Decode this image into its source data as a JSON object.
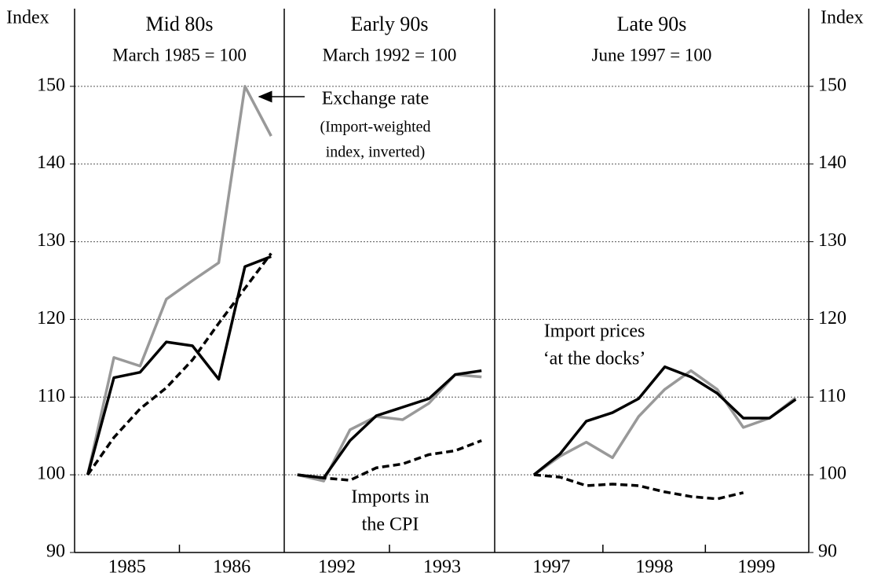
{
  "chart_data": {
    "type": "line",
    "y_label": "Index",
    "ylim": [
      90,
      160
    ],
    "yticks": [
      90,
      100,
      110,
      120,
      130,
      140,
      150
    ],
    "grid": true,
    "panels": [
      {
        "title": "Mid 80s",
        "subtitle": "March 1985 = 100",
        "categories": [
          null,
          null,
          null,
          null,
          null,
          null,
          null,
          null
        ],
        "xlim": [
          -0.5,
          7.5
        ],
        "xticks": [
          {
            "value": 1.5,
            "label": "1985"
          },
          {
            "value": 5.5,
            "label": "1986"
          }
        ],
        "series": [
          {
            "color": "#999999",
            "dash": false,
            "values": [
              100,
              115.1,
              114,
              122.6,
              125,
              127.3,
              150,
              143.6
            ]
          },
          {
            "color": "#000000",
            "dash": false,
            "values": [
              100,
              112.5,
              113.2,
              117.1,
              116.6,
              112.3,
              126.8,
              128.1
            ]
          },
          {
            "color": "#000000",
            "dash": true,
            "values": [
              100,
              104.8,
              108.5,
              111.2,
              114.8,
              119.5,
              124,
              128.5
            ]
          }
        ]
      },
      {
        "title": "Early 90s",
        "subtitle": "March 1992 = 100",
        "categories": [
          null,
          null,
          null,
          null,
          null,
          null,
          null,
          null
        ],
        "xlim": [
          -0.5,
          7.5
        ],
        "xticks": [
          {
            "value": 1.5,
            "label": "1992"
          },
          {
            "value": 5.5,
            "label": "1993"
          }
        ],
        "series": [
          {
            "color": "#999999",
            "dash": false,
            "values": [
              100,
              99.2,
              105.8,
              107.5,
              107.1,
              109.2,
              112.9,
              112.6
            ]
          },
          {
            "color": "#000000",
            "dash": false,
            "values": [
              100,
              99.6,
              104.4,
              107.6,
              108.7,
              109.8,
              112.9,
              113.4
            ]
          },
          {
            "color": "#000000",
            "dash": true,
            "values": [
              100,
              99.6,
              99.3,
              100.9,
              101.4,
              102.6,
              103.1,
              104.4
            ]
          }
        ]
      },
      {
        "title": "Late 90s",
        "subtitle": "June 1997 = 100",
        "categories": [
          null,
          null,
          null,
          null,
          null,
          null,
          null,
          null,
          null,
          null,
          null
        ],
        "xlim": [
          -1.5,
          10.5
        ],
        "xticks": [
          {
            "value": 0.67,
            "label": "1997"
          },
          {
            "value": 4.6,
            "label": "1998"
          },
          {
            "value": 8.5,
            "label": "1999"
          }
        ],
        "series": [
          {
            "color": "#999999",
            "dash": false,
            "values": [
              100,
              102.4,
              104.2,
              102.2,
              107.5,
              111,
              113.4,
              111,
              106.1,
              107.3,
              109.9
            ]
          },
          {
            "color": "#000000",
            "dash": false,
            "values": [
              100,
              102.7,
              106.9,
              108.0,
              109.8,
              113.9,
              112.6,
              110.5,
              107.3,
              107.3,
              109.7
            ]
          },
          {
            "color": "#000000",
            "dash": true,
            "values": [
              100,
              99.7,
              98.6,
              98.8,
              98.6,
              97.8,
              97.2,
              96.9,
              97.7,
              null,
              null
            ]
          }
        ]
      }
    ],
    "annotations": {
      "exchange_rate": [
        "Exchange rate",
        "(Import-weighted",
        "index, inverted)"
      ],
      "import_prices": [
        "Import prices",
        "‘at the docks’"
      ],
      "cpi_imports": [
        "Imports in",
        "the CPI"
      ]
    }
  }
}
